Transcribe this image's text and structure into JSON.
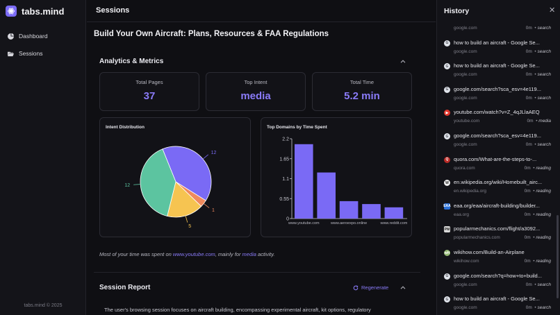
{
  "sidebar": {
    "brand": "tabs.mind",
    "items": [
      {
        "label": "Dashboard",
        "icon": "pie-chart-icon"
      },
      {
        "label": "Sessions",
        "icon": "folder-open-icon"
      }
    ],
    "copyright": "tabs.mind © 2025"
  },
  "topbar": {
    "title": "Sessions"
  },
  "page": {
    "title": "Build Your Own Aircraft: Plans, Resources & FAA Regulations"
  },
  "analytics": {
    "heading": "Analytics & Metrics",
    "stats": [
      {
        "label": "Total Pages",
        "value": "37"
      },
      {
        "label": "Top Intent",
        "value": "media"
      },
      {
        "label": "Total Time",
        "value": "5.2 min"
      }
    ]
  },
  "chart_data": [
    {
      "type": "pie",
      "title": "Intent Distribution",
      "labels": [
        "12",
        "1",
        "5",
        "12"
      ],
      "values": [
        12,
        1,
        5,
        12
      ],
      "colors": [
        "#7a6af5",
        "#f08a5d",
        "#f6c451",
        "#5cc4a0"
      ]
    },
    {
      "type": "bar",
      "title": "Top Domains by Time Spent",
      "categories": [
        "www.youtube.com",
        "",
        "www.aeroexpo.online",
        "",
        "www.reddit.com"
      ],
      "values": [
        2.05,
        1.27,
        0.48,
        0.4,
        0.31
      ],
      "yticks": [
        "0",
        "0.55",
        "1.1",
        "1.65",
        "2.2"
      ],
      "ylim": [
        0,
        2.2
      ],
      "color": "#7a6af5"
    }
  ],
  "summary": {
    "prefix": "Most of your time was spent on ",
    "domain": "www.youtube.com",
    "middle": ", mainly for ",
    "intent": "media",
    "suffix": " activity."
  },
  "report": {
    "heading": "Session Report",
    "regenerate": "Regenerate",
    "text": "The user's browsing session focuses on aircraft building, encompassing experimental aircraft, kit options, regulatory"
  },
  "history": {
    "title": "History",
    "items": [
      {
        "title": "",
        "domain": "google.com",
        "time": "0m",
        "intent": "search",
        "icon": "google",
        "color": "#dfe3ea"
      },
      {
        "title": "how to build an aircraft - Google Se...",
        "domain": "google.com",
        "time": "0m",
        "intent": "search",
        "icon": "google",
        "color": "#dfe3ea"
      },
      {
        "title": "how to build an aircraft - Google Se...",
        "domain": "google.com",
        "time": "0m",
        "intent": "search",
        "icon": "google",
        "color": "#dfe3ea"
      },
      {
        "title": "google.com/search?sca_esv=4e119...",
        "domain": "google.com",
        "time": "0m",
        "intent": "search",
        "icon": "google",
        "color": "#dfe3ea"
      },
      {
        "title": "youtube.com/watch?v=Z_4qJLlaAEQ",
        "domain": "youtube.com",
        "time": "0m",
        "intent": "media",
        "icon": "youtube",
        "color": "#e0362c"
      },
      {
        "title": "google.com/search?sca_esv=4e119...",
        "domain": "google.com",
        "time": "0m",
        "intent": "search",
        "icon": "google",
        "color": "#dfe3ea"
      },
      {
        "title": "quora.com/What-are-the-steps-to-...",
        "domain": "quora.com",
        "time": "0m",
        "intent": "reading",
        "icon": "quora",
        "color": "#b92b27"
      },
      {
        "title": "en.wikipedia.org/wiki/Homebuilt_airc...",
        "domain": "en.wikipedia.org",
        "time": "0m",
        "intent": "reading",
        "icon": "wikipedia",
        "color": "#eeeeee"
      },
      {
        "title": "eaa.org/eaa/aircraft-building/builder...",
        "domain": "eaa.org",
        "time": "0m",
        "intent": "reading",
        "icon": "eaa",
        "color": "#2a6fd6"
      },
      {
        "title": "popularmechanics.com/flight/a3092...",
        "domain": "popularmechanics.com",
        "time": "0m",
        "intent": "reading",
        "icon": "popularmechanics",
        "color": "#d9d9d9"
      },
      {
        "title": "wikihow.com/Build-an-Airplane",
        "domain": "wikihow.com",
        "time": "0m",
        "intent": "reading",
        "icon": "wikihow",
        "color": "#93b874"
      },
      {
        "title": "google.com/search?q=how+to+build...",
        "domain": "google.com",
        "time": "0m",
        "intent": "search",
        "icon": "google",
        "color": "#dfe3ea"
      },
      {
        "title": "how to build an aircraft - Google Se...",
        "domain": "google.com",
        "time": "0m",
        "intent": "search",
        "icon": "google",
        "color": "#dfe3ea"
      }
    ]
  }
}
